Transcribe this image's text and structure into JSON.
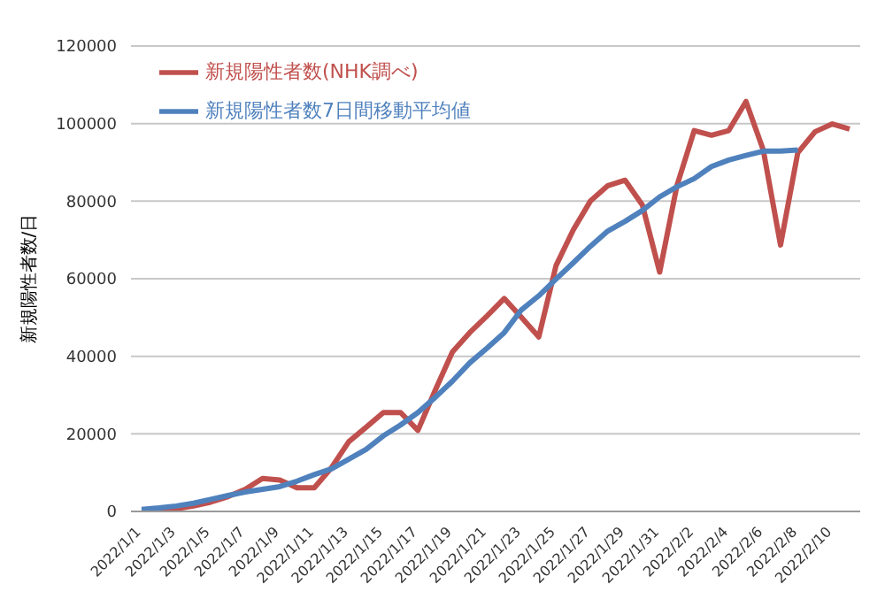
{
  "chart_data": {
    "type": "line",
    "ylabel": "新規陽性者数/日",
    "categories": [
      "2022/1/1",
      null,
      "2022/1/3",
      null,
      "2022/1/5",
      null,
      "2022/1/7",
      null,
      "2022/1/9",
      null,
      "2022/1/11",
      null,
      "2022/1/13",
      null,
      "2022/1/15",
      null,
      "2022/1/17",
      null,
      "2022/1/19",
      null,
      "2022/1/21",
      null,
      "2022/1/23",
      null,
      "2022/1/25",
      null,
      "2022/1/27",
      null,
      "2022/1/29",
      null,
      "2022/1/31",
      null,
      "2022/2/2",
      null,
      "2022/2/4",
      null,
      "2022/2/6",
      null,
      "2022/2/8",
      null,
      "2022/2/10",
      null
    ],
    "series": [
      {
        "name": "新規陽性者数(NHK調べ)",
        "color": "#c0504d",
        "values": [
          400,
          300,
          700,
          1400,
          2400,
          3800,
          5700,
          8500,
          8100,
          6100,
          6100,
          11300,
          18000,
          21700,
          25500,
          25500,
          20900,
          31200,
          41100,
          46100,
          50400,
          54900,
          50000,
          45000,
          63400,
          72600,
          80100,
          84000,
          85400,
          79000,
          61700,
          84000,
          98200,
          97000,
          98200,
          105700,
          93200,
          68700,
          92500,
          97900,
          99900,
          98600
        ]
      },
      {
        "name": "新規陽性者数7日間移動平均値",
        "color": "#4f81bd",
        "values": [
          500,
          900,
          1400,
          2100,
          3100,
          4100,
          5000,
          5700,
          6400,
          7800,
          9500,
          11000,
          13500,
          16000,
          19500,
          22300,
          25500,
          29400,
          33600,
          38300,
          42100,
          46100,
          52000,
          55600,
          59900,
          64100,
          68400,
          72300,
          74800,
          77600,
          81100,
          83700,
          85800,
          88900,
          90600,
          91800,
          92900,
          92900,
          93200,
          null,
          null,
          null
        ]
      }
    ],
    "ylim": [
      0,
      120000
    ],
    "yticks": [
      0,
      20000,
      40000,
      60000,
      80000,
      100000,
      120000
    ],
    "grid": "y",
    "legend": "top left",
    "marker": "none",
    "line_style": "solid"
  }
}
